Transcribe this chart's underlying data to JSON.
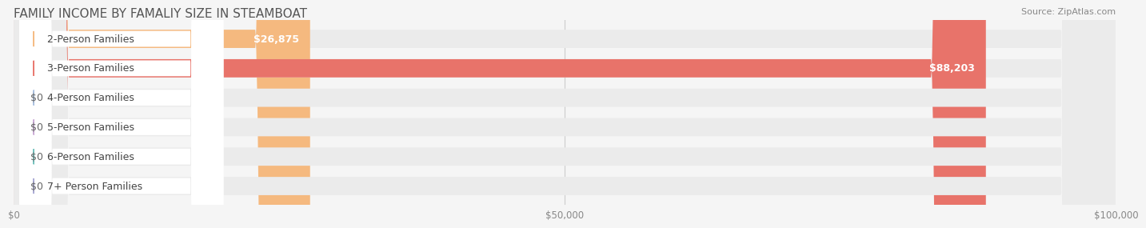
{
  "title": "FAMILY INCOME BY FAMALIY SIZE IN STEAMBOAT",
  "source": "Source: ZipAtlas.com",
  "categories": [
    "2-Person Families",
    "3-Person Families",
    "4-Person Families",
    "5-Person Families",
    "6-Person Families",
    "7+ Person Families"
  ],
  "values": [
    26875,
    88203,
    0,
    0,
    0,
    0
  ],
  "bar_colors": [
    "#f5b97f",
    "#e8736a",
    "#a8bfdf",
    "#c9a8d4",
    "#6dbfba",
    "#a8a8d4"
  ],
  "label_colors": [
    "#f5b97f",
    "#e8736a",
    "#a8bfdf",
    "#c9a8d4",
    "#6dbfba",
    "#a8a8d4"
  ],
  "value_labels": [
    "$26,875",
    "$88,203",
    "$0",
    "$0",
    "$0",
    "$0"
  ],
  "xlim": [
    0,
    100000
  ],
  "xticks": [
    0,
    50000,
    100000
  ],
  "xticklabels": [
    "$0",
    "$50,000",
    "$100,000"
  ],
  "background_color": "#f5f5f5",
  "bar_background_color": "#ebebeb",
  "title_fontsize": 11,
  "source_fontsize": 8,
  "label_fontsize": 9,
  "value_fontsize": 9
}
